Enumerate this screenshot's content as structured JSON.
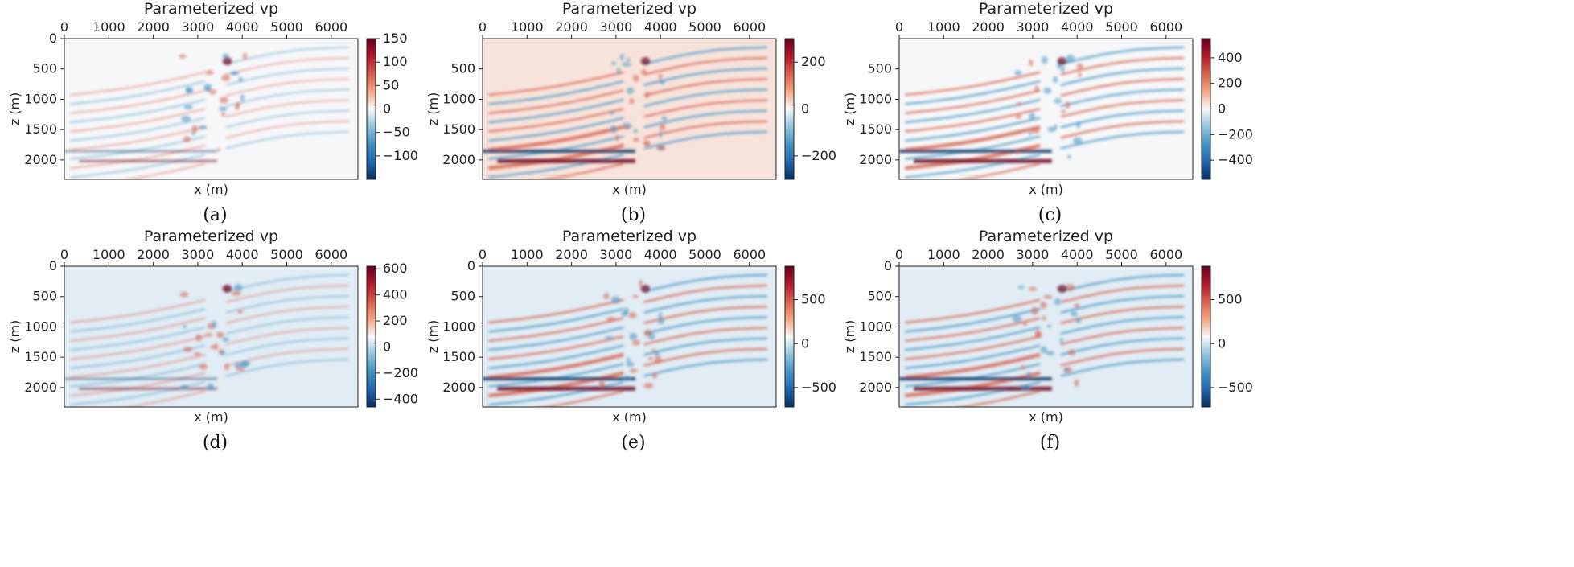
{
  "chart_data": [
    {
      "id": "a",
      "caption": "(a)",
      "type": "heatmap",
      "title": "Parameterized vp",
      "xlabel": "x (m)",
      "ylabel": "z (m)",
      "xticks": [
        0,
        1000,
        2000,
        3000,
        4000,
        5000,
        6000
      ],
      "xlim": [
        0,
        6600
      ],
      "yticks": [
        0,
        500,
        1000,
        1500,
        2000
      ],
      "ylim": [
        2320,
        0
      ],
      "colorbar": {
        "colormap": "RdBu_r",
        "vmin": -150,
        "vmax": 150,
        "ticks": [
          "150",
          "100",
          "50",
          "0",
          "−50",
          "−100"
        ],
        "tick_values": [
          150,
          100,
          50,
          0,
          -50,
          -100
        ]
      },
      "background": "white",
      "style": "diffuse"
    },
    {
      "id": "b",
      "caption": "(b)",
      "type": "heatmap",
      "title": "Parameterized vp",
      "xlabel": "x (m)",
      "ylabel": "z (m)",
      "xticks": [
        0,
        1000,
        2000,
        3000,
        4000,
        5000,
        6000
      ],
      "xlim": [
        0,
        6600
      ],
      "yticks": [
        500,
        1000,
        1500,
        2000
      ],
      "ylim": [
        2320,
        0
      ],
      "colorbar": {
        "colormap": "RdBu_r",
        "vmin": -300,
        "vmax": 300,
        "ticks": [
          "200",
          "0",
          "−200"
        ],
        "tick_values": [
          200,
          0,
          -200
        ]
      },
      "background": "light-red",
      "style": "layered"
    },
    {
      "id": "c",
      "caption": "(c)",
      "type": "heatmap",
      "title": "Parameterized vp",
      "xlabel": "x (m)",
      "ylabel": "z (m)",
      "xticks": [
        0,
        1000,
        2000,
        3000,
        4000,
        5000,
        6000
      ],
      "xlim": [
        0,
        6600
      ],
      "yticks": [
        500,
        1000,
        1500,
        2000
      ],
      "ylim": [
        2320,
        0
      ],
      "colorbar": {
        "colormap": "RdBu_r",
        "vmin": -550,
        "vmax": 550,
        "ticks": [
          "400",
          "200",
          "0",
          "−200",
          "−400"
        ],
        "tick_values": [
          400,
          200,
          0,
          -200,
          -400
        ]
      },
      "background": "white",
      "style": "layered"
    },
    {
      "id": "d",
      "caption": "(d)",
      "type": "heatmap",
      "title": "Parameterized vp",
      "xlabel": "x (m)",
      "ylabel": "z (m)",
      "xticks": [
        0,
        1000,
        2000,
        3000,
        4000,
        5000,
        6000
      ],
      "xlim": [
        0,
        6600
      ],
      "yticks": [
        0,
        500,
        1000,
        1500,
        2000
      ],
      "ylim": [
        2320,
        0
      ],
      "colorbar": {
        "colormap": "RdBu_r",
        "vmin": -460,
        "vmax": 620,
        "ticks": [
          "600",
          "400",
          "200",
          "0",
          "−200",
          "−400"
        ],
        "tick_values": [
          600,
          400,
          200,
          0,
          -200,
          -400
        ]
      },
      "background": "light-blue",
      "style": "diffuse"
    },
    {
      "id": "e",
      "caption": "(e)",
      "type": "heatmap",
      "title": "Parameterized vp",
      "xlabel": "x (m)",
      "ylabel": "z (m)",
      "xticks": [
        0,
        1000,
        2000,
        3000,
        4000,
        5000,
        6000
      ],
      "xlim": [
        0,
        6600
      ],
      "yticks": [
        0,
        500,
        1000,
        1500,
        2000
      ],
      "ylim": [
        2320,
        0
      ],
      "colorbar": {
        "colormap": "RdBu_r",
        "vmin": -720,
        "vmax": 880,
        "ticks": [
          "500",
          "0",
          "−500"
        ],
        "tick_values": [
          500,
          0,
          -500
        ]
      },
      "background": "light-blue",
      "style": "layered"
    },
    {
      "id": "f",
      "caption": "(f)",
      "type": "heatmap",
      "title": "Parameterized vp",
      "xlabel": "x (m)",
      "ylabel": "z (m)",
      "xticks": [
        0,
        1000,
        2000,
        3000,
        4000,
        5000,
        6000
      ],
      "xlim": [
        0,
        6600
      ],
      "yticks": [
        0,
        500,
        1000,
        1500,
        2000
      ],
      "ylim": [
        2320,
        0
      ],
      "colorbar": {
        "colormap": "RdBu_r",
        "vmin": -720,
        "vmax": 880,
        "ticks": [
          "500",
          "0",
          "−500"
        ],
        "tick_values": [
          500,
          0,
          -500
        ]
      },
      "background": "light-blue",
      "style": "layered"
    }
  ],
  "colors": {
    "deep_red": "#67001f",
    "red": "#d6604d",
    "white": "#f7f7f7",
    "blue": "#4393c3",
    "deep_blue": "#053061"
  }
}
